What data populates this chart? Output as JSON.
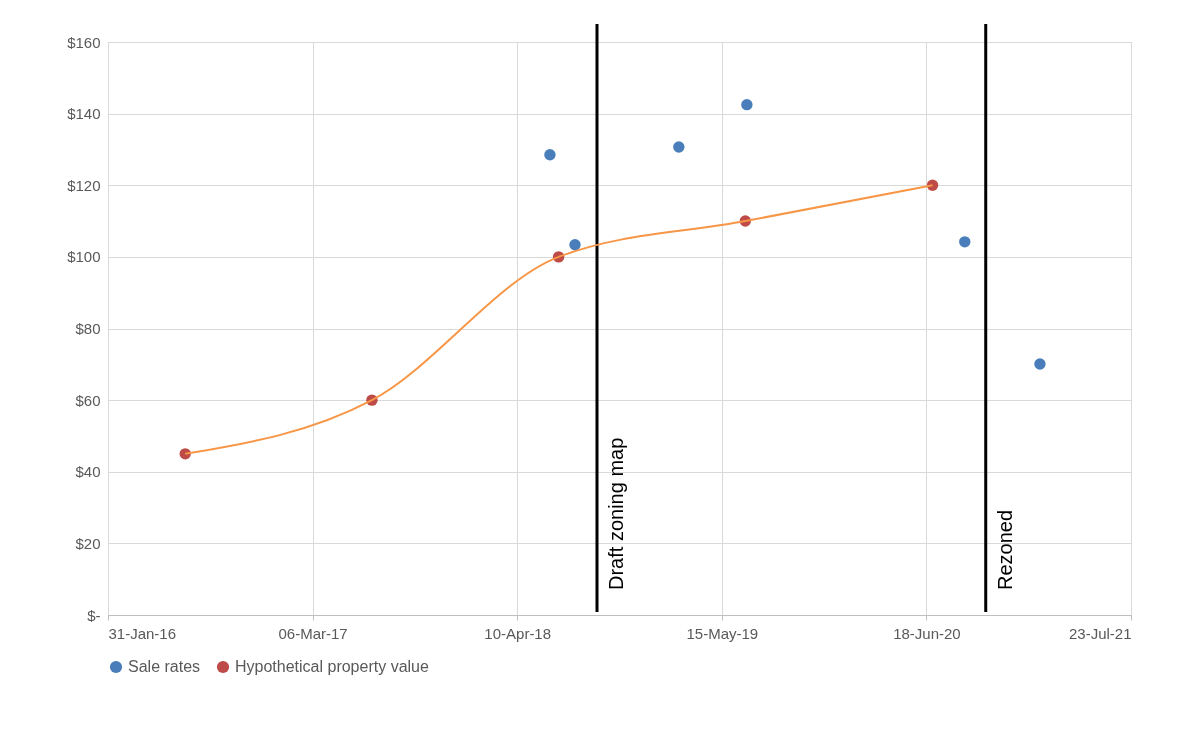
{
  "chart_data": {
    "type": "scatter",
    "series": [
      {
        "name": "Sale rates",
        "color": "#4a7ebb",
        "x": [
          "2018-06-13",
          "2018-08-01",
          "2019-02-20",
          "2019-07-03",
          "2020-09-01",
          "2021-01-26"
        ],
        "values": [
          128.5,
          103.4,
          130.7,
          142.5,
          104.2,
          70.1
        ]
      },
      {
        "name": "Hypothetical property value",
        "color": "#be4b48",
        "x": [
          "2016-06-30",
          "2017-06-30",
          "2018-06-30",
          "2019-06-30",
          "2020-06-30"
        ],
        "values": [
          45,
          60,
          100,
          110,
          120
        ]
      },
      {
        "type": "line",
        "marker": "none",
        "color": "#f79646",
        "x": [
          "2016-06-30",
          "2017-06-30",
          "2018-06-30",
          "2019-06-30",
          "2020-06-30"
        ],
        "values": [
          45,
          60,
          100,
          110,
          120
        ]
      }
    ],
    "xlim": [
      "2016-01-31",
      "2021-07-23"
    ],
    "xticks": [
      {
        "value": "2016-01-31",
        "label": "31-Jan-16"
      },
      {
        "value": "2017-03-06",
        "label": "06-Mar-17"
      },
      {
        "value": "2018-04-10",
        "label": "10-Apr-18"
      },
      {
        "value": "2019-05-15",
        "label": "15-May-19"
      },
      {
        "value": "2020-06-18",
        "label": "18-Jun-20"
      },
      {
        "value": "2021-07-23",
        "label": "23-Jul-21"
      }
    ],
    "ylim": [
      0,
      160
    ],
    "yticks": [
      {
        "value": 0,
        "label": "$-"
      },
      {
        "value": 20,
        "label": "$20"
      },
      {
        "value": 40,
        "label": "$40"
      },
      {
        "value": 60,
        "label": "$60"
      },
      {
        "value": 80,
        "label": "$80"
      },
      {
        "value": 100,
        "label": "$100"
      },
      {
        "value": 120,
        "label": "$120"
      },
      {
        "value": 140,
        "label": "$140"
      },
      {
        "value": 160,
        "label": "$160"
      }
    ],
    "ref_lines": [
      {
        "axis": "x",
        "value": "2018-09-13",
        "label": "Draft zoning map",
        "color": "#000000"
      },
      {
        "axis": "x",
        "value": "2020-10-12",
        "label": "Rezoned",
        "color": "#000000"
      }
    ],
    "grid": true,
    "legend": "bottom",
    "marker": "circle"
  }
}
